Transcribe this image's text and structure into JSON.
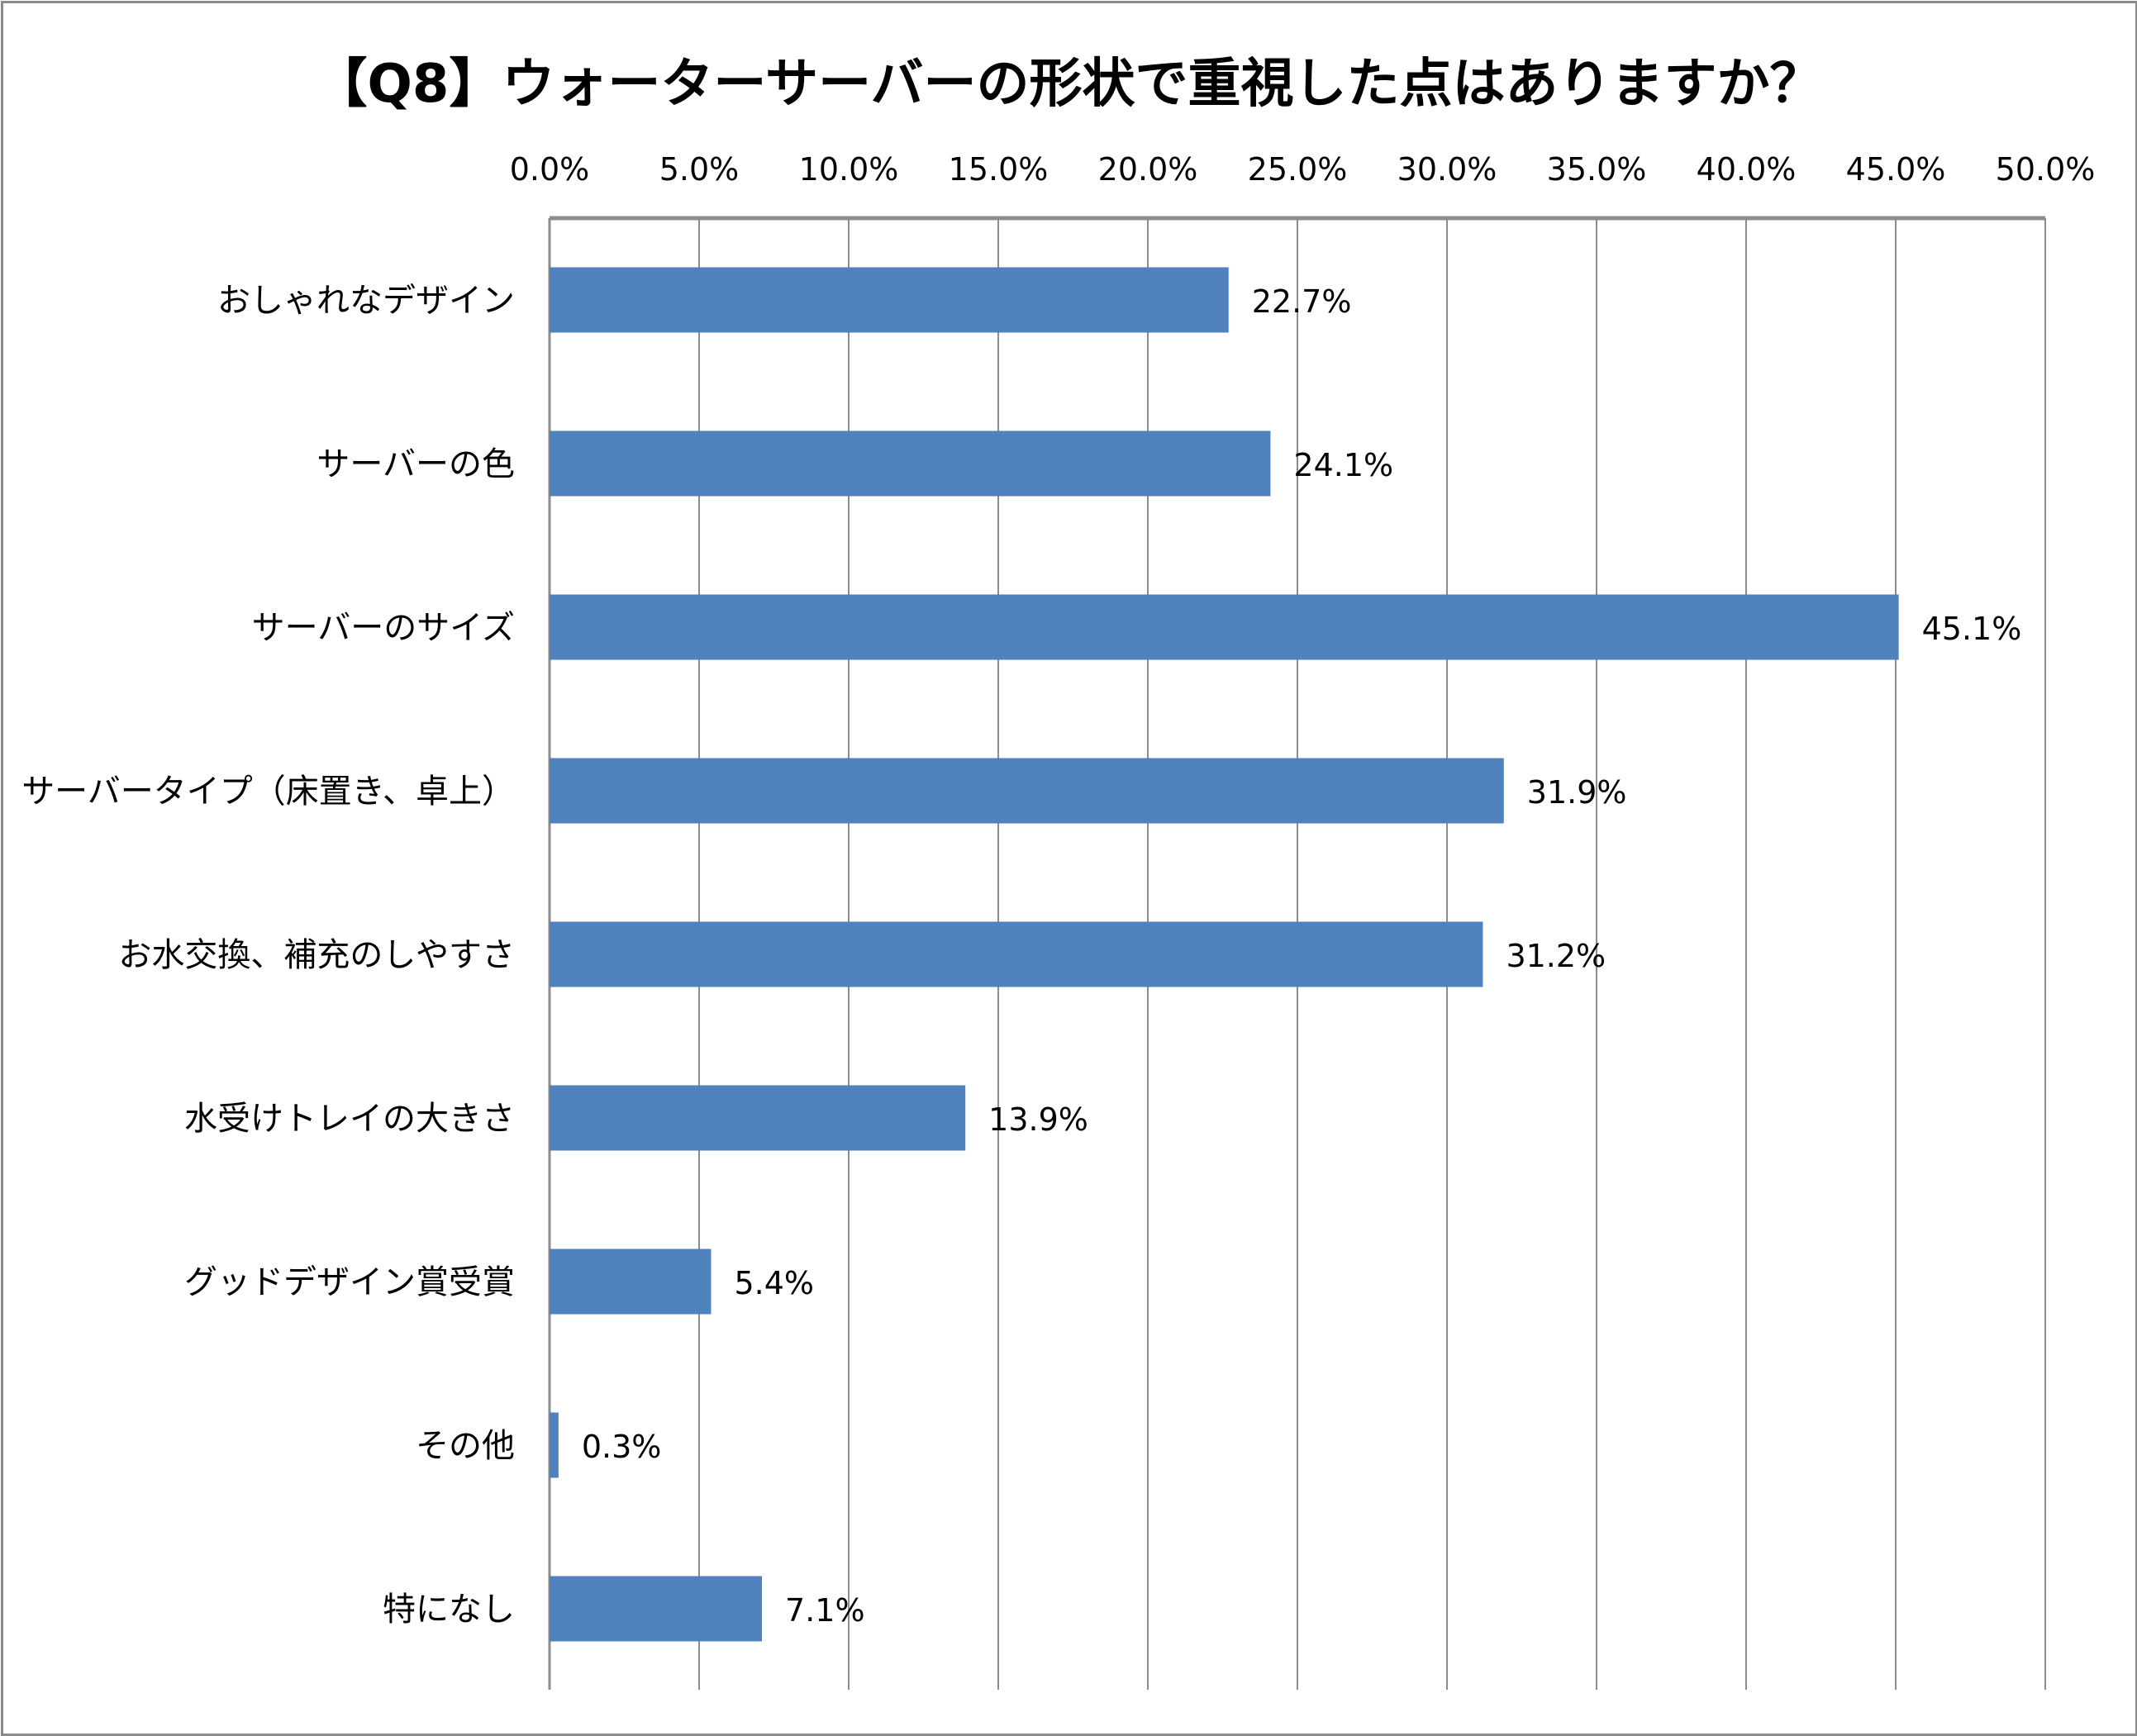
{
  "chart_data": {
    "type": "bar",
    "orientation": "horizontal",
    "title": "【Q8】ウォーターサーバーの形状で重視した点はありますか？",
    "categories": [
      "おしゃれなデザイン",
      "サーバーの色",
      "サーバーのサイズ",
      "サーバータイプ（床置き、卓上）",
      "お水交換、補充のしやすさ",
      "水受けトレイの大きさ",
      "グッドデザイン賞受賞",
      "その他",
      "特になし"
    ],
    "values": [
      22.7,
      24.1,
      45.1,
      31.9,
      31.2,
      13.9,
      5.4,
      0.3,
      7.1
    ],
    "data_labels": [
      "22.7%",
      "24.1%",
      "45.1%",
      "31.9%",
      "31.2%",
      "13.9%",
      "5.4%",
      "0.3%",
      "7.1%"
    ],
    "xlim": [
      0,
      50
    ],
    "x_ticks": [
      "0.0%",
      "5.0%",
      "10.0%",
      "15.0%",
      "20.0%",
      "25.0%",
      "30.0%",
      "35.0%",
      "40.0%",
      "45.0%",
      "50.0%"
    ],
    "x_axis_position": "top",
    "grid": true,
    "legend": "none",
    "bar_color": "#4F81BD",
    "grid_color": "#8C8C8C"
  }
}
